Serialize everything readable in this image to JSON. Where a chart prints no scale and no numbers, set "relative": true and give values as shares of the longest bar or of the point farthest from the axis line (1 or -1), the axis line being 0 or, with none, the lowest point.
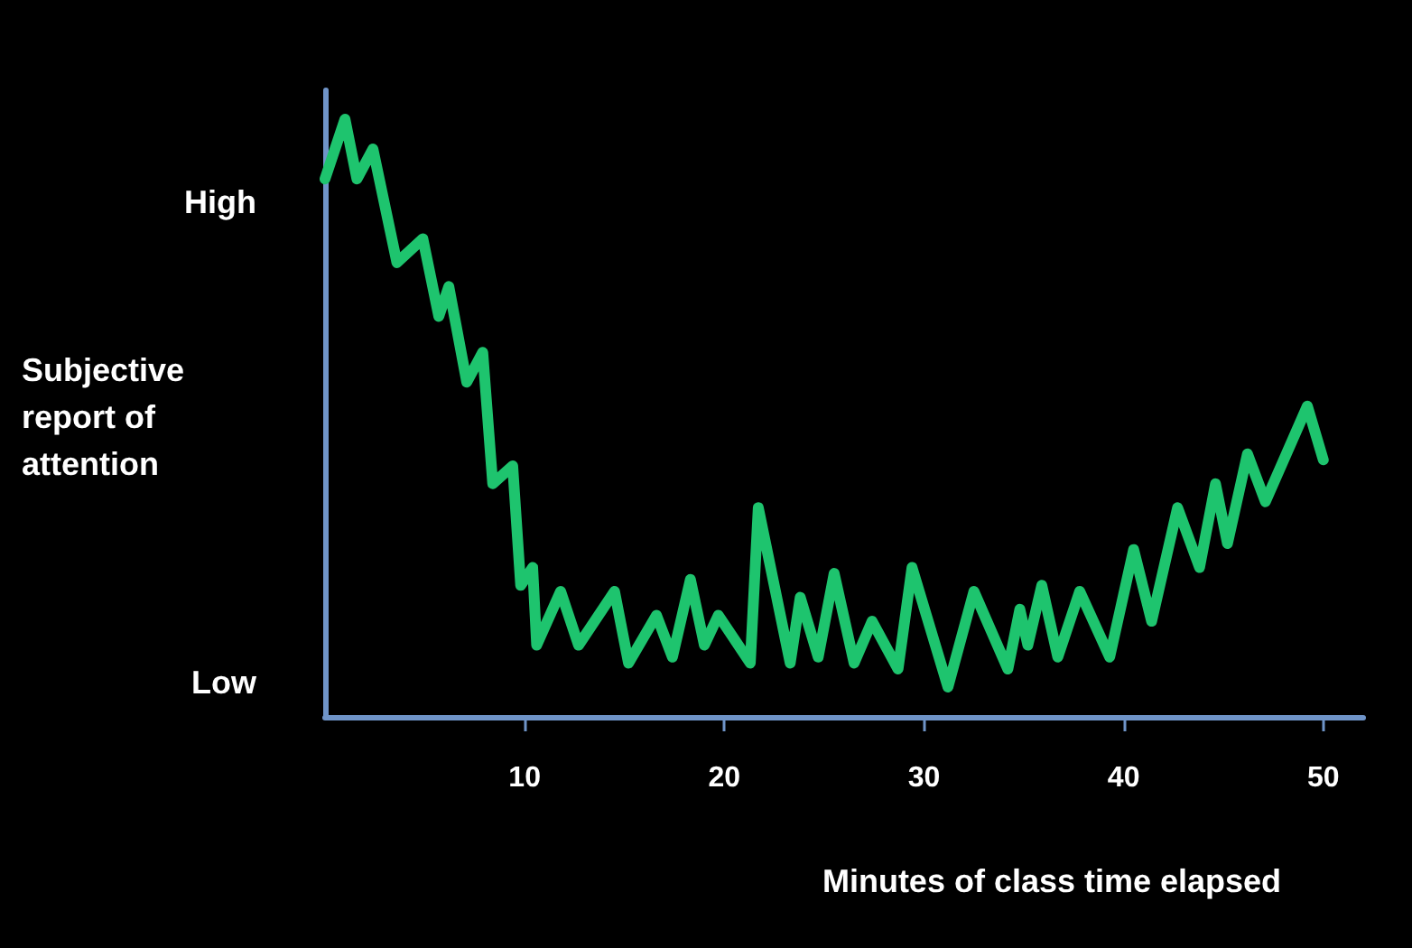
{
  "chart_data": {
    "type": "line",
    "relative": true,
    "xlabel": "Minutes of class time elapsed",
    "ylabel": "Subjective\nreport of\nattention",
    "annotations": [
      "High",
      "Low"
    ],
    "x": [
      0.0,
      1.0,
      1.6,
      2.4,
      3.6,
      4.9,
      5.7,
      6.2,
      7.1,
      7.9,
      8.4,
      9.4,
      9.8,
      10.4,
      10.6,
      11.8,
      12.7,
      14.5,
      15.2,
      16.6,
      17.4,
      18.3,
      19.0,
      19.7,
      21.3,
      21.7,
      23.3,
      23.8,
      24.7,
      25.5,
      26.5,
      27.4,
      28.7,
      29.4,
      31.2,
      32.5,
      34.2,
      34.8,
      35.2,
      35.9,
      36.7,
      37.8,
      39.3,
      40.5,
      41.4,
      42.7,
      43.8,
      44.6,
      45.2,
      46.2,
      47.1,
      49.2,
      50.0
    ],
    "values": [
      0.9,
      1.0,
      0.9,
      0.95,
      0.76,
      0.8,
      0.67,
      0.72,
      0.56,
      0.61,
      0.39,
      0.42,
      0.22,
      0.25,
      0.12,
      0.21,
      0.12,
      0.21,
      0.09,
      0.17,
      0.1,
      0.23,
      0.12,
      0.17,
      0.09,
      0.35,
      0.09,
      0.2,
      0.1,
      0.24,
      0.09,
      0.16,
      0.08,
      0.25,
      0.05,
      0.21,
      0.08,
      0.18,
      0.12,
      0.22,
      0.1,
      0.21,
      0.1,
      0.28,
      0.16,
      0.35,
      0.25,
      0.39,
      0.29,
      0.44,
      0.36,
      0.52,
      0.43
    ],
    "color": "#1ec46e",
    "line_style": "solid",
    "marker": "none",
    "xlim": [
      0,
      52
    ],
    "xticks": [
      10,
      20,
      30,
      40,
      50
    ]
  }
}
